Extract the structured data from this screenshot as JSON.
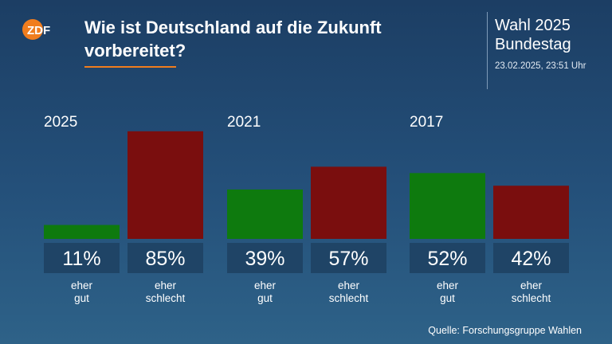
{
  "header": {
    "title": "Wie ist Deutschland auf die Zukunft vorbereitet?",
    "election_line1": "Wahl 2025",
    "election_line2": "Bundestag",
    "timestamp": "23.02.2025, 23:51 Uhr",
    "logo_text": "ZDF"
  },
  "footer": {
    "source": "Quelle: Forschungsgruppe Wahlen"
  },
  "colors": {
    "positive": "#0e7a0e",
    "negative": "#7a0e0e",
    "value_box": "#1f4466",
    "accent": "#f07d1e"
  },
  "chart_data": {
    "type": "bar",
    "title": "Wie ist Deutschland auf die Zukunft vorbereitet?",
    "categories": [
      [
        "eher",
        "gut"
      ],
      [
        "eher",
        "schlecht"
      ]
    ],
    "groups": [
      {
        "year": "2025",
        "values": [
          11,
          85
        ],
        "labels": [
          "11%",
          "85%"
        ]
      },
      {
        "year": "2021",
        "values": [
          39,
          57
        ],
        "labels": [
          "39%",
          "57%"
        ]
      },
      {
        "year": "2017",
        "values": [
          52,
          42
        ],
        "labels": [
          "52%",
          "42%"
        ]
      }
    ],
    "ylim": [
      0,
      100
    ],
    "grid": false,
    "legend": "none"
  }
}
